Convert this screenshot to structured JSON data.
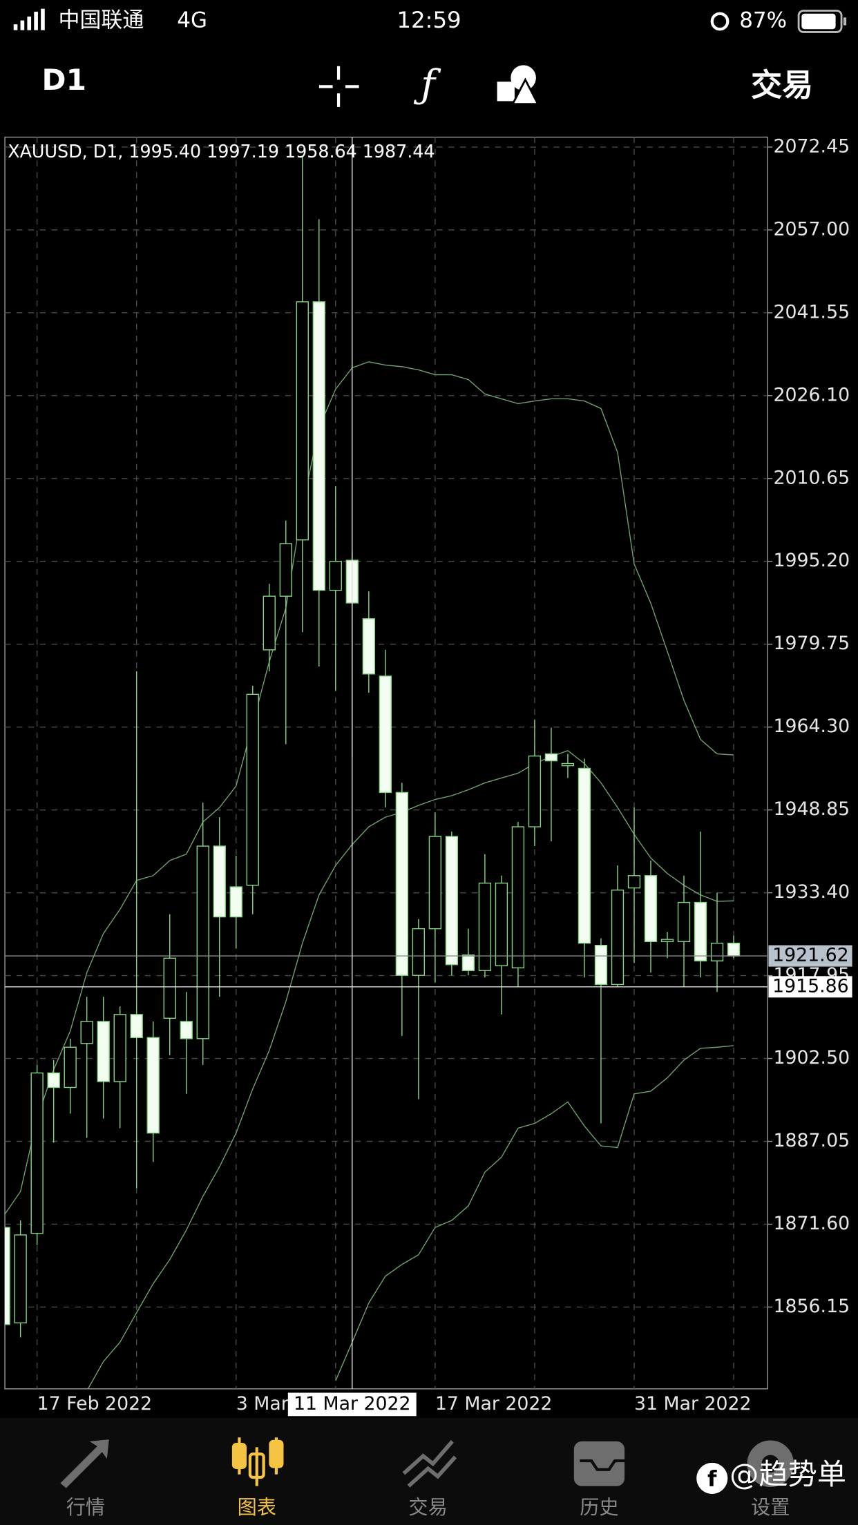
{
  "status_bar": {
    "carrier": "中国联通",
    "network": "4G",
    "time": "12:59",
    "battery": "87%"
  },
  "toolbar": {
    "timeframe": "D1",
    "trade": "交易"
  },
  "chart_data": {
    "type": "candlestick",
    "info_label": "XAUUSD, D1, 1995.40 1997.19 1958.64 1987.44",
    "categories": [
      null,
      null,
      "17 Feb 2022",
      null,
      null,
      null,
      null,
      null,
      null,
      null,
      null,
      null,
      null,
      null,
      "3 Mar 2022",
      null,
      null,
      null,
      null,
      null,
      null,
      null,
      null,
      null,
      null,
      null,
      "17 Mar 2022",
      null,
      null,
      null,
      null,
      null,
      null,
      null,
      null,
      null,
      null,
      null,
      "31 Mar 2022",
      null,
      null,
      null,
      null,
      null,
      null
    ],
    "open": [
      1871.0,
      1853.2,
      1869.9,
      1899.8,
      1897.1,
      1905.3,
      1909.4,
      1898.2,
      1910.7,
      1906.4,
      1910.0,
      1909.4,
      1906.2,
      1942.1,
      1934.5,
      1934.8,
      1978.7,
      1988.7,
      1999.2,
      2043.6,
      1989.8,
      1995.4,
      1984.5,
      1973.8,
      1952.1,
      1918.0,
      1926.7,
      1943.9,
      1921.8,
      1918.9,
      1919.8,
      1919.4,
      1945.7,
      1959.3,
      1957.1,
      1956.6,
      1923.6,
      1916.3,
      1934.3,
      1936.6,
      1924.3,
      1924.3,
      1931.6,
      1920.7,
      1924.0
    ],
    "high": [
      1871.0,
      1872.3,
      1901.3,
      1902.2,
      1906.2,
      1914.0,
      1914.0,
      1912.2,
      1974.7,
      1909.4,
      1929.4,
      1914.9,
      1950.2,
      1947.5,
      1940.3,
      1972.0,
      1991.0,
      2002.8,
      2070.8,
      2059.0,
      2009.2,
      1997.19,
      1989.6,
      1978.7,
      1953.9,
      1928.5,
      1948.4,
      1944.8,
      1926.7,
      1940.6,
      1936.6,
      1946.6,
      1965.7,
      1964.2,
      1959.3,
      1958.4,
      1924.9,
      1938.5,
      1949.3,
      1939.4,
      1926.1,
      1936.6,
      1944.8,
      1933.4,
      1925.4
    ],
    "low": [
      1852.9,
      1850.5,
      1867.7,
      1886.8,
      1892.2,
      1887.7,
      1891.3,
      1889.5,
      1878.3,
      1883.2,
      1903.1,
      1895.9,
      1901.3,
      1914.0,
      1923.0,
      1929.4,
      1974.7,
      1961.1,
      1982.0,
      1975.6,
      1971.1,
      1958.64,
      1970.7,
      1949.3,
      1906.7,
      1894.9,
      1916.7,
      1918.0,
      1918.0,
      1917.6,
      1910.7,
      1915.8,
      1942.1,
      1943.0,
      1954.8,
      1917.6,
      1890.4,
      1915.8,
      1920.3,
      1918.5,
      1921.2,
      1915.8,
      1917.6,
      1914.9,
      1921.2
    ],
    "close": [
      1852.9,
      1869.6,
      1899.8,
      1897.1,
      1904.6,
      1909.4,
      1898.2,
      1910.7,
      1906.4,
      1888.6,
      1921.2,
      1906.2,
      1942.1,
      1928.9,
      1928.9,
      1970.4,
      1988.7,
      1998.5,
      2043.6,
      1989.8,
      1995.2,
      1987.44,
      1974.2,
      1952.1,
      1918.0,
      1926.7,
      1943.9,
      1920.0,
      1918.9,
      1935.2,
      1935.2,
      1945.7,
      1958.9,
      1958.0,
      1957.5,
      1924.0,
      1916.3,
      1933.9,
      1936.6,
      1924.3,
      1924.7,
      1931.6,
      1920.7,
      1924.0,
      1921.62
    ],
    "bands": {
      "upper": [
        1873.2,
        1877.7,
        1891.3,
        1900.4,
        1907.6,
        1918.5,
        1925.8,
        1930.3,
        1935.7,
        1936.6,
        1939.4,
        1940.6,
        1946.6,
        1949.3,
        1953.3,
        1964.8,
        1976.5,
        1986.5,
        2005.5,
        2020.1,
        2027.3,
        2031.3,
        2032.4,
        2031.8,
        2031.5,
        2030.9,
        2030.0,
        2030.0,
        2029.1,
        2026.4,
        2025.5,
        2024.6,
        2025.1,
        2025.5,
        2025.5,
        2025.1,
        2023.7,
        2015.5,
        1994.7,
        1987.4,
        1978.4,
        1969.3,
        1962.0,
        1959.3,
        1959.1
      ],
      "middle": [
        null,
        null,
        null,
        null,
        null,
        1840.5,
        1846.0,
        1849.6,
        1855.1,
        1860.5,
        1865.0,
        1870.5,
        1876.8,
        1882.3,
        1888.6,
        1896.8,
        1904.0,
        1913.1,
        1924.0,
        1933.0,
        1938.5,
        1942.4,
        1945.7,
        1947.5,
        1948.4,
        1949.7,
        1950.8,
        1951.5,
        1952.6,
        1953.9,
        1954.8,
        1955.7,
        1957.5,
        1958.8,
        1959.9,
        1957.5,
        1953.9,
        1949.3,
        1944.3,
        1939.9,
        1937.0,
        1934.8,
        1933.0,
        1931.8,
        1931.9
      ],
      "lower": [
        null,
        null,
        null,
        null,
        null,
        null,
        null,
        null,
        null,
        null,
        null,
        null,
        null,
        null,
        null,
        null,
        null,
        null,
        null,
        null,
        1842.4,
        1849.6,
        1856.9,
        1861.9,
        1864.1,
        1865.9,
        1871.0,
        1872.3,
        1875.0,
        1881.3,
        1884.1,
        1889.5,
        1890.4,
        1892.2,
        1894.4,
        1889.9,
        1886.2,
        1885.9,
        1895.9,
        1896.4,
        1898.9,
        1902.2,
        1904.4,
        1904.6,
        1904.9
      ]
    },
    "ylim": [
      1840.9,
      2074.3
    ],
    "yticks": [
      2072.45,
      {
        "value": 2057,
        "label": "2057.00"
      },
      2041.55,
      {
        "value": 2026.1,
        "label": "2026.10"
      },
      2010.65,
      {
        "value": 1995.2,
        "label": "1995.20"
      },
      1979.75,
      {
        "value": 1964.3,
        "label": "1964.30"
      },
      1948.85,
      {
        "value": 1933.4,
        "label": "1933.40"
      },
      1917.95,
      {
        "value": 1902.5,
        "label": "1902.50"
      },
      1887.05,
      {
        "value": 1871.6,
        "label": "1871.60"
      },
      1856.15
    ],
    "grid": true,
    "up_color": "#000000",
    "down_color": "#f2fff0",
    "outline_color": "#86d486",
    "band_color": "#6f9f6f",
    "bid_line": 1921.62,
    "crosshair": {
      "price": 1915.86,
      "date": "11 Mar 2022"
    }
  },
  "tabs": [
    {
      "label": "行情",
      "active": false
    },
    {
      "label": "图表",
      "active": true
    },
    {
      "label": "交易",
      "active": false
    },
    {
      "label": "历史",
      "active": false
    },
    {
      "label": "设置",
      "active": false
    }
  ],
  "watermark": "@趋势单"
}
